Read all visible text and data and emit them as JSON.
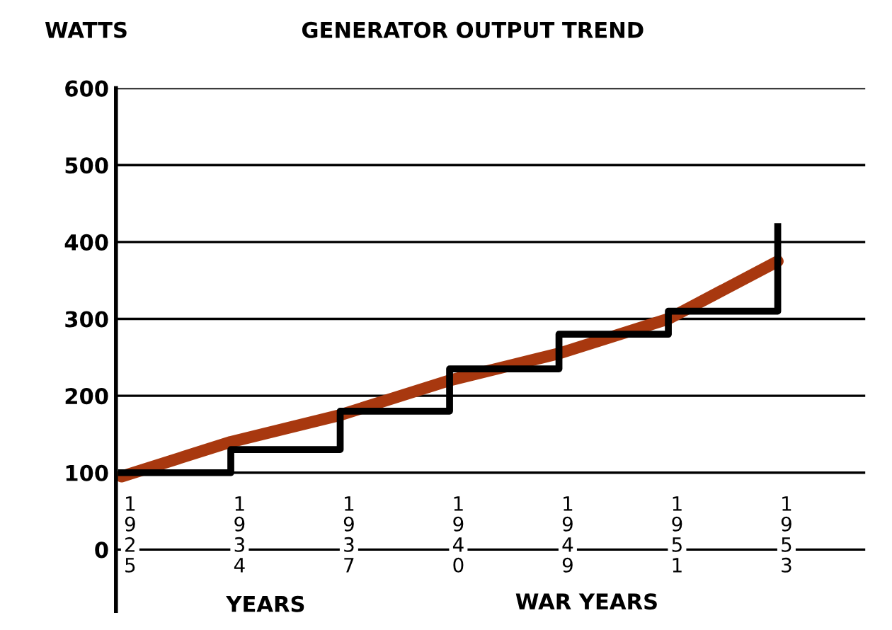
{
  "chart_data": {
    "type": "step",
    "title": "GENERATOR OUTPUT TREND",
    "ylabel": "WATTS",
    "xlabel": "YEARS",
    "categories": [
      "1925",
      "1934",
      "1937",
      "1940",
      "1949",
      "1951",
      "1953"
    ],
    "series": [
      {
        "type": "line",
        "color": "#a8380f",
        "values": [
          95,
          140,
          175,
          220,
          255,
          300,
          375
        ]
      },
      {
        "color": "#000000",
        "values": [
          100,
          130,
          180,
          235,
          280,
          310,
          420
        ]
      }
    ],
    "ylim": [
      -80,
      600
    ],
    "yticks": [
      0,
      100,
      200,
      300,
      400,
      500,
      600
    ],
    "grid": "y",
    "legend": false,
    "annotations": [
      "WAR YEARS"
    ]
  }
}
